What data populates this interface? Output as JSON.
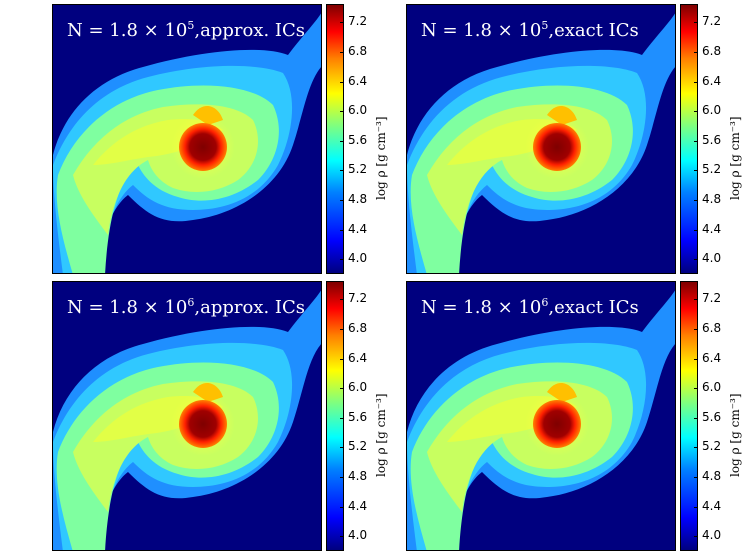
{
  "colorbar_label": "log ρ [g cm⁻³]",
  "chart_data": {
    "type": "heatmap",
    "colormap": "jet",
    "colorbar": {
      "label": "log ρ [g cm⁻³]",
      "ticks": [
        "7.2",
        "6.8",
        "6.4",
        "6.0",
        "5.6",
        "5.2",
        "4.8",
        "4.4",
        "4.0"
      ],
      "range": [
        3.8,
        7.45
      ]
    },
    "panels": [
      {
        "N_mantissa": "1.8",
        "N_exponent": "5",
        "ics": "approx. ICs"
      },
      {
        "N_mantissa": "1.8",
        "N_exponent": "5",
        "ics": "exact ICs"
      },
      {
        "N_mantissa": "1.8",
        "N_exponent": "6",
        "ics": "approx. ICs"
      },
      {
        "N_mantissa": "1.8",
        "N_exponent": "6",
        "ics": "exact ICs"
      }
    ]
  }
}
